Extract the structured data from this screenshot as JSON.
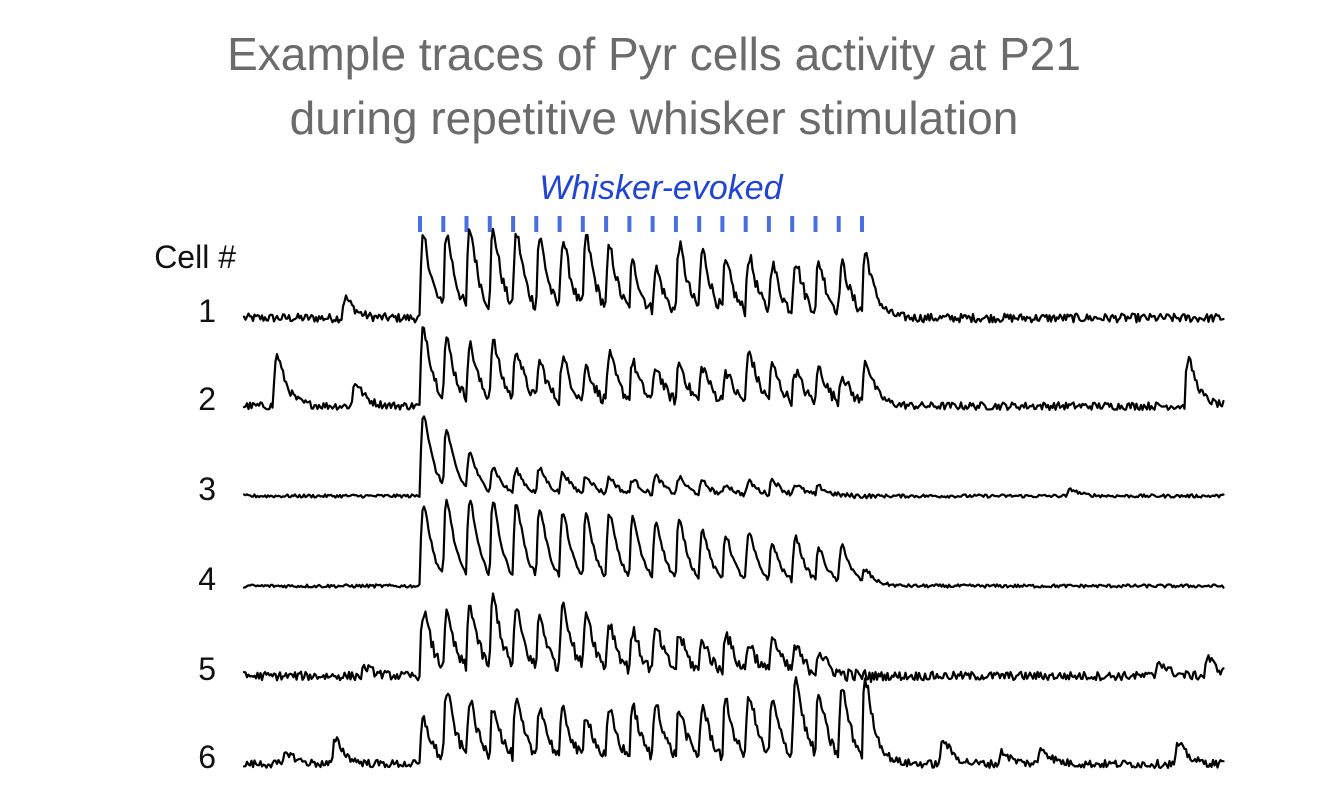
{
  "chart_data": {
    "type": "line",
    "title_lines": [
      "Example traces of Pyr cells activity at P21",
      "during repetitive whisker stimulation"
    ],
    "stimulus": {
      "label": "Whisker-evoked",
      "color": "#1f44d6",
      "tick_color": "#4a6ee0",
      "count": 20
    },
    "row_header": "Cell #",
    "trace_color": "#000000",
    "series": [
      {
        "name": "1",
        "baseline_noise": 0.055,
        "responses": [
          1.0,
          0.95,
          1.0,
          0.98,
          0.95,
          0.9,
          0.88,
          0.92,
          0.78,
          0.6,
          0.55,
          0.85,
          0.75,
          0.6,
          0.7,
          0.6,
          0.65,
          0.62,
          0.6,
          0.75
        ],
        "spontaneous": [
          [
            0.1,
            0.25
          ]
        ]
      },
      {
        "name": "2",
        "baseline_noise": 0.05,
        "responses": [
          1.0,
          0.75,
          0.7,
          0.75,
          0.65,
          0.5,
          0.55,
          0.45,
          0.6,
          0.5,
          0.45,
          0.5,
          0.45,
          0.4,
          0.65,
          0.45,
          0.4,
          0.45,
          0.35,
          0.55
        ],
        "spontaneous": [
          [
            0.03,
            0.65
          ],
          [
            0.11,
            0.3
          ],
          [
            0.96,
            0.6
          ]
        ]
      },
      {
        "name": "3",
        "baseline_noise": 0.02,
        "responses": [
          1.0,
          0.7,
          0.45,
          0.3,
          0.28,
          0.3,
          0.25,
          0.22,
          0.2,
          0.18,
          0.22,
          0.2,
          0.15,
          0.12,
          0.16,
          0.18,
          0.12,
          0.1,
          0.0,
          0.0
        ],
        "spontaneous": [
          [
            0.84,
            0.08
          ]
        ]
      },
      {
        "name": "4",
        "baseline_noise": 0.02,
        "responses": [
          1.0,
          0.95,
          0.95,
          0.92,
          0.9,
          0.85,
          0.8,
          0.78,
          0.8,
          0.75,
          0.7,
          0.72,
          0.6,
          0.55,
          0.58,
          0.45,
          0.55,
          0.4,
          0.45,
          0.15
        ],
        "spontaneous": []
      },
      {
        "name": "5",
        "baseline_noise": 0.06,
        "responses": [
          0.9,
          0.75,
          0.9,
          1.0,
          0.8,
          0.75,
          0.95,
          0.8,
          0.65,
          0.55,
          0.6,
          0.5,
          0.45,
          0.55,
          0.4,
          0.5,
          0.35,
          0.3,
          0.0,
          0.0
        ],
        "spontaneous": [
          [
            0.12,
            0.12
          ],
          [
            0.93,
            0.2
          ],
          [
            0.98,
            0.25
          ]
        ]
      },
      {
        "name": "6",
        "baseline_noise": 0.05,
        "responses": [
          0.55,
          0.85,
          0.7,
          0.65,
          0.7,
          0.65,
          0.6,
          0.55,
          0.6,
          0.65,
          0.7,
          0.6,
          0.65,
          0.7,
          0.8,
          0.7,
          1.0,
          0.75,
          0.85,
          0.95
        ],
        "spontaneous": [
          [
            0.04,
            0.15
          ],
          [
            0.09,
            0.3
          ],
          [
            0.71,
            0.3
          ],
          [
            0.77,
            0.15
          ],
          [
            0.81,
            0.2
          ],
          [
            0.95,
            0.25
          ]
        ]
      }
    ]
  }
}
